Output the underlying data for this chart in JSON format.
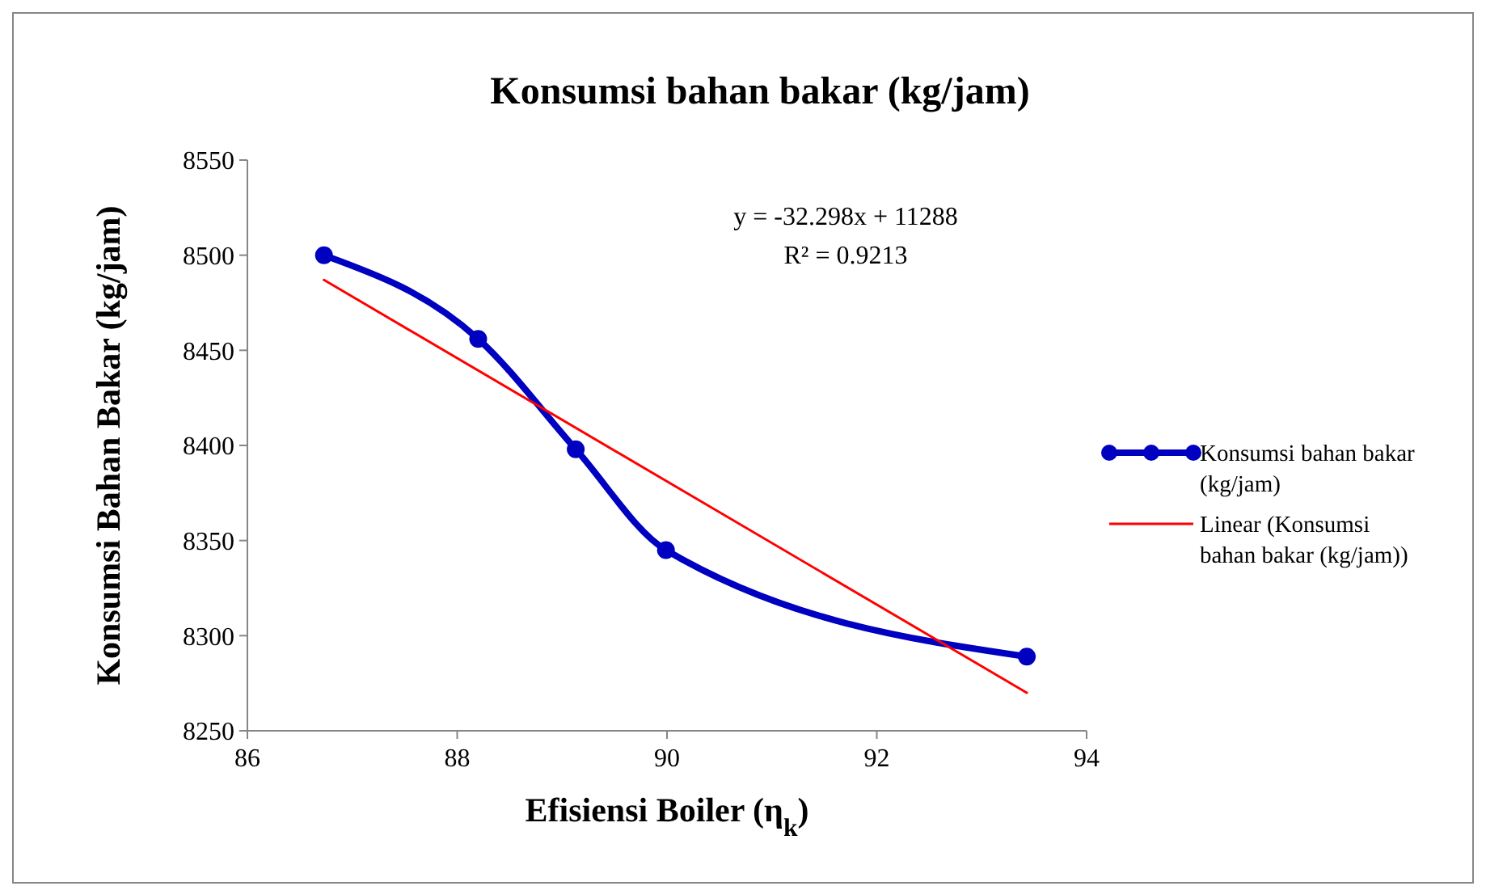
{
  "chart_data": {
    "type": "line",
    "title": "Konsumsi bahan bakar (kg/jam)",
    "xlabel": "Efisiensi Boiler (η$_{k}$)",
    "ylabel": "Konsumsi Bahan Bakar (kg/jam)",
    "xlim": [
      86,
      94
    ],
    "xticks": [
      86,
      88,
      90,
      92,
      94
    ],
    "ylim": [
      8250,
      8550
    ],
    "yticks": [
      8250,
      8300,
      8350,
      8400,
      8450,
      8500,
      8550
    ],
    "grid": false,
    "legend": "right",
    "line_style": "solid",
    "annotations": [
      "y = -32.298x + 11288",
      "R² = 0.9213"
    ],
    "series": [
      {
        "name": "Konsumsi bahan bakar (kg/jam)",
        "color": "#0000c0",
        "marker": "circle",
        "x": [
          86.73,
          88.2,
          89.13,
          89.99,
          93.43
        ],
        "values": [
          8500,
          8456,
          8398,
          8345,
          8289
        ]
      },
      {
        "name": "Linear (Konsumsi bahan bakar (kg/jam))",
        "color": "#ff0000",
        "marker": "none",
        "x": [
          86.73,
          93.43
        ],
        "values": [
          8487,
          8270
        ]
      }
    ]
  }
}
